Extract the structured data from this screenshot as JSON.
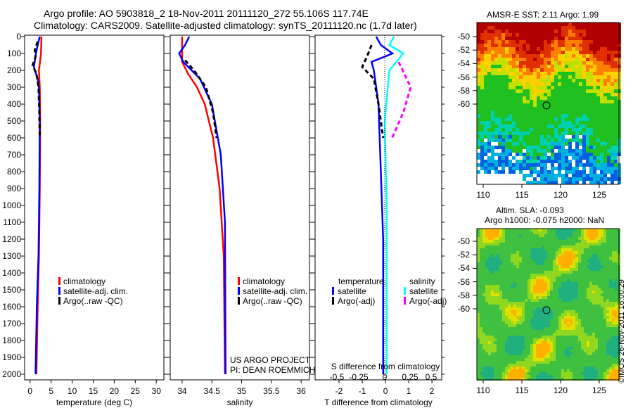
{
  "header": {
    "line1": "Argo profile: AO 5903818_2 18-Nov-2011 20111120_272 55.106S 117.74E",
    "line2": "Climatology: CARS2009. Satellite-adjusted climatology: synTS_20111120.nc (1.7d later)"
  },
  "colors": {
    "climatology": "#ff0000",
    "satellite": "#0000ff",
    "argo": "#000000",
    "sal_sat": "#00ffff",
    "sal_argo": "#ff00ff"
  },
  "chart_data": [
    {
      "type": "line",
      "title": "",
      "xlabel": "temperature (deg C)",
      "ylabel": "",
      "xlim": [
        -1.3,
        31.8
      ],
      "ylim": [
        2000,
        0
      ],
      "xticks": [
        "0",
        "5",
        "10",
        "15",
        "20",
        "25",
        "30"
      ],
      "yticks": [
        "0",
        "100",
        "200",
        "300",
        "400",
        "500",
        "600",
        "700",
        "800",
        "900",
        "1000",
        "1100",
        "1200",
        "1300",
        "1400",
        "1500",
        "1600",
        "1700",
        "1800",
        "1900",
        "2000"
      ],
      "legend": [
        "climatology",
        "satellite-adj. clim.",
        "Argo(..raw -QC)"
      ],
      "series": [
        {
          "name": "climatology",
          "depth": [
            0,
            100,
            200,
            300,
            500,
            900,
            1300,
            1600,
            2000
          ],
          "values": [
            2.7,
            2.6,
            2.1,
            2.3,
            2.4,
            2.3,
            2.1,
            1.8,
            1.5
          ]
        },
        {
          "name": "satellite-adj. clim.",
          "depth": [
            0,
            50,
            100,
            180,
            250,
            300,
            500,
            900,
            1300,
            1600,
            2000
          ],
          "values": [
            2.3,
            1.8,
            1.4,
            0.9,
            1.8,
            2.1,
            2.3,
            2.2,
            2.0,
            1.6,
            1.3
          ]
        },
        {
          "name": "Argo(..raw -QC)",
          "depth": [
            30,
            80,
            120,
            170,
            220,
            300,
            450,
            600
          ],
          "values": [
            1.8,
            1.1,
            1.3,
            0.6,
            1.5,
            2.0,
            2.2,
            2.3
          ]
        }
      ]
    },
    {
      "type": "line",
      "xlabel": "salinity",
      "xlim": [
        33.8,
        36.14
      ],
      "ylim": [
        2000,
        0
      ],
      "xticks": [
        "34",
        "34.5",
        "35",
        "35.5",
        "36"
      ],
      "legend": [
        "climatology",
        "satellite-adj. clim.",
        "Argo(..raw -QC)"
      ],
      "annotations": [
        "US ARGO PROJECT",
        "PI: DEAN ROEMMICH"
      ],
      "series": [
        {
          "name": "climatology",
          "depth": [
            0,
            150,
            220,
            300,
            400,
            600,
            900,
            1300,
            2000
          ],
          "values": [
            34.0,
            34.0,
            34.1,
            34.25,
            34.38,
            34.52,
            34.63,
            34.7,
            34.72
          ]
        },
        {
          "name": "satellite-adj. clim.",
          "depth": [
            0,
            50,
            100,
            150,
            250,
            400,
            700,
            1100,
            2000
          ],
          "values": [
            34.12,
            34.05,
            33.95,
            34.02,
            34.3,
            34.5,
            34.65,
            34.72,
            34.73
          ]
        },
        {
          "name": "Argo(..raw -QC)",
          "depth": [
            140,
            200,
            300,
            450,
            600
          ],
          "values": [
            34.05,
            34.2,
            34.4,
            34.52,
            34.58
          ]
        }
      ]
    },
    {
      "type": "line",
      "xlabel": "T difference from climatology",
      "x2label": "S difference from climatology",
      "xlim": [
        -3.03,
        2.42
      ],
      "ylim": [
        2000,
        0
      ],
      "xticks": [
        "-2",
        "-1",
        "0",
        "1",
        "2"
      ],
      "x2ticks": [
        "-0.5",
        "-0.25",
        "0",
        "0.25",
        "0.5"
      ],
      "legend_titles": [
        "temperature",
        "salinity"
      ],
      "legend": [
        "satellite",
        "Argo(-adj)",
        "satellite",
        "Argo(-adj)"
      ],
      "series": [
        {
          "name": "T satellite",
          "depth": [
            0,
            50,
            100,
            150,
            200,
            400,
            800,
            1200,
            2000
          ],
          "values": [
            -0.4,
            -0.2,
            0.3,
            -0.6,
            -0.5,
            -0.3,
            -0.2,
            -0.1,
            -0.1
          ]
        },
        {
          "name": "T Argo(-adj)",
          "depth": [
            50,
            120,
            180,
            250,
            400,
            600
          ],
          "values": [
            -0.6,
            -0.8,
            -1.0,
            -0.5,
            -0.3,
            -0.1
          ]
        },
        {
          "name": "S satellite",
          "depth": [
            0,
            50,
            100,
            200,
            500,
            1000,
            2000
          ],
          "values": [
            0.1,
            0.05,
            0.2,
            0.05,
            0.0,
            0.02,
            0.02
          ]
        },
        {
          "name": "S Argo(-adj)",
          "depth": [
            150,
            300,
            450,
            600
          ],
          "values": [
            0.15,
            0.28,
            0.2,
            0.08
          ]
        }
      ]
    }
  ],
  "maps": {
    "sst": {
      "title": "AMSR-E SST: 2.11 Argo: 1.99"
    },
    "sla": {
      "title1": "Altim. SLA: -0.093",
      "title2": "Argo h1000: -0.075 h2000: NaN"
    },
    "lat_ticks": [
      "-50",
      "-52",
      "-54",
      "-56",
      "-58",
      "-60"
    ],
    "lon_ticks": [
      "110",
      "115",
      "120",
      "125"
    ]
  },
  "watermark": "©IMOS 26-Nov-2011 16:00:29"
}
